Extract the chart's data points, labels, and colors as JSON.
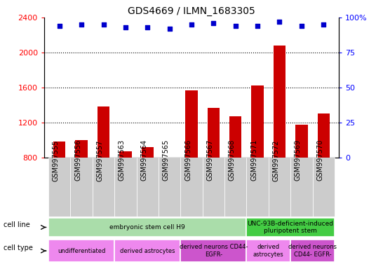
{
  "title": "GDS4669 / ILMN_1683305",
  "samples": [
    "GSM997555",
    "GSM997556",
    "GSM997557",
    "GSM997563",
    "GSM997564",
    "GSM997565",
    "GSM997566",
    "GSM997567",
    "GSM997568",
    "GSM997571",
    "GSM997572",
    "GSM997569",
    "GSM997570"
  ],
  "counts": [
    980,
    1000,
    1380,
    870,
    920,
    790,
    1570,
    1370,
    1270,
    1620,
    2080,
    1170,
    1300
  ],
  "percentiles": [
    94,
    95,
    95,
    93,
    93,
    92,
    95,
    96,
    94,
    94,
    97,
    94,
    95
  ],
  "ylim_left": [
    800,
    2400
  ],
  "ylim_right": [
    0,
    100
  ],
  "yticks_left": [
    800,
    1200,
    1600,
    2000,
    2400
  ],
  "yticks_right": [
    0,
    25,
    50,
    75,
    100
  ],
  "bar_color": "#cc0000",
  "dot_color": "#0000cc",
  "cell_line_groups": [
    {
      "label": "embryonic stem cell H9",
      "start": 0,
      "end": 9,
      "color": "#aaddaa"
    },
    {
      "label": "UNC-93B-deficient-induced\npluripotent stem",
      "start": 9,
      "end": 13,
      "color": "#44cc44"
    }
  ],
  "cell_type_groups": [
    {
      "label": "undifferentiated",
      "start": 0,
      "end": 3,
      "color": "#ee88ee"
    },
    {
      "label": "derived astrocytes",
      "start": 3,
      "end": 6,
      "color": "#ee88ee"
    },
    {
      "label": "derived neurons CD44-\nEGFR-",
      "start": 6,
      "end": 9,
      "color": "#cc55cc"
    },
    {
      "label": "derived\nastrocytes",
      "start": 9,
      "end": 11,
      "color": "#ee88ee"
    },
    {
      "label": "derived neurons\nCD44- EGFR-",
      "start": 11,
      "end": 13,
      "color": "#cc55cc"
    }
  ],
  "legend_count_color": "#cc0000",
  "legend_pct_color": "#0000cc",
  "tick_label_fontsize": 7,
  "bar_width": 0.55,
  "sample_box_color": "#cccccc",
  "sample_box_color2": "#bbbbbb"
}
